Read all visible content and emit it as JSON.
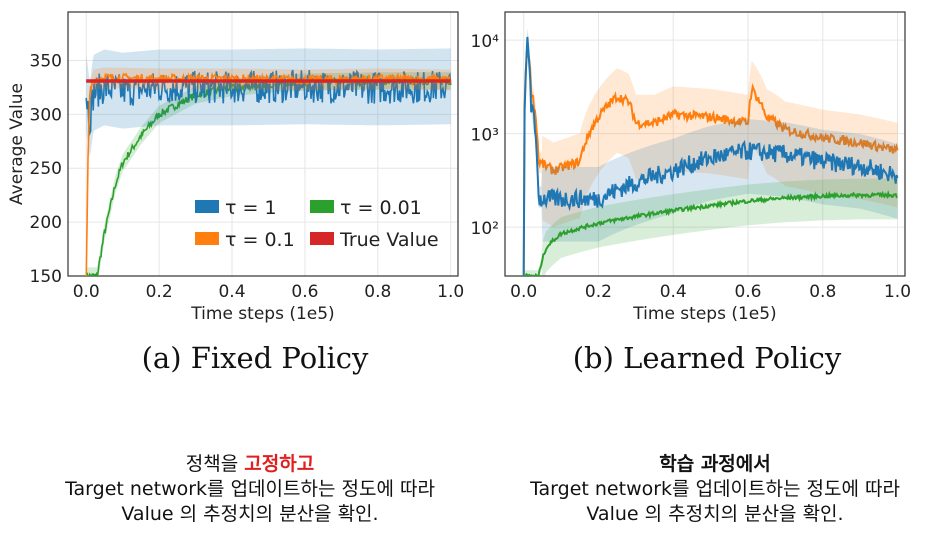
{
  "chart_data": [
    {
      "type": "line",
      "caption": "(a) Fixed Policy",
      "xlabel": "Time steps (1e5)",
      "ylabel": "Average Value",
      "xlim": [
        -0.05,
        1.02
      ],
      "ylim": [
        150,
        395
      ],
      "xticks": [
        "0.0",
        "0.2",
        "0.4",
        "0.6",
        "0.8",
        "1.0"
      ],
      "yticks": [
        "150",
        "200",
        "250",
        "300",
        "350"
      ],
      "grid": true,
      "legend_position": "lower-right",
      "series": [
        {
          "name": "τ = 1",
          "color": "#1f77b4",
          "x": [
            0.0,
            0.01,
            0.02,
            0.05,
            0.1,
            0.2,
            0.4,
            0.6,
            0.8,
            1.0
          ],
          "y": [
            320,
            295,
            320,
            325,
            322,
            325,
            325,
            326,
            325,
            326
          ]
        },
        {
          "name": "τ = 0.1",
          "color": "#ff7f0e",
          "x": [
            0.0,
            0.005,
            0.01,
            0.02,
            0.05,
            0.2,
            0.4,
            0.6,
            0.8,
            1.0
          ],
          "y": [
            150,
            260,
            320,
            332,
            334,
            333,
            333,
            332,
            333,
            332
          ]
        },
        {
          "name": "τ = 0.01",
          "color": "#2ca02c",
          "x": [
            0.0,
            0.03,
            0.05,
            0.08,
            0.1,
            0.15,
            0.2,
            0.3,
            0.4,
            0.5,
            0.6,
            0.8,
            1.0
          ],
          "y": [
            150,
            150,
            190,
            235,
            255,
            280,
            300,
            318,
            325,
            328,
            330,
            331,
            331
          ]
        },
        {
          "name": "True Value",
          "color": "#d62728",
          "x": [
            0.0,
            1.0
          ],
          "y": [
            331,
            331
          ]
        }
      ]
    },
    {
      "type": "line",
      "caption": "(b) Learned Policy",
      "xlabel": "Time steps (1e5)",
      "ylabel": "",
      "xscale": "linear",
      "yscale": "log",
      "xlim": [
        -0.05,
        1.02
      ],
      "ylim": [
        30,
        20000
      ],
      "xticks": [
        "0.0",
        "0.2",
        "0.4",
        "0.6",
        "0.8",
        "1.0"
      ],
      "yticks": [
        "10²",
        "10³",
        "10⁴"
      ],
      "grid": true,
      "series": [
        {
          "name": "τ = 1",
          "color": "#1f77b4",
          "x": [
            0.0,
            0.005,
            0.01,
            0.02,
            0.04,
            0.1,
            0.2,
            0.3,
            0.4,
            0.5,
            0.55,
            0.6,
            0.7,
            0.8,
            0.9,
            1.0
          ],
          "y": [
            30,
            3000,
            10000,
            2000,
            200,
            200,
            200,
            300,
            400,
            550,
            600,
            650,
            600,
            500,
            450,
            350
          ]
        },
        {
          "name": "τ = 0.1",
          "color": "#ff7f0e",
          "x": [
            0.0,
            0.005,
            0.01,
            0.02,
            0.04,
            0.08,
            0.15,
            0.2,
            0.25,
            0.28,
            0.3,
            0.35,
            0.4,
            0.5,
            0.55,
            0.6,
            0.61,
            0.65,
            0.7,
            0.8,
            0.9,
            1.0
          ],
          "y": [
            30,
            4000,
            9000,
            3000,
            500,
            400,
            500,
            1500,
            2500,
            2200,
            1300,
            1300,
            1600,
            1500,
            1400,
            1300,
            3000,
            1500,
            1100,
            900,
            800,
            650
          ]
        },
        {
          "name": "τ = 0.01",
          "color": "#2ca02c",
          "x": [
            0.0,
            0.04,
            0.06,
            0.1,
            0.2,
            0.3,
            0.4,
            0.5,
            0.6,
            0.7,
            0.8,
            0.9,
            1.0
          ],
          "y": [
            30,
            30,
            60,
            85,
            110,
            130,
            150,
            170,
            190,
            205,
            215,
            220,
            220
          ]
        }
      ]
    }
  ],
  "notes": {
    "left": {
      "line1_prefix": "정책을 ",
      "line1_highlight": "고정하고",
      "line2": "Target network를 업데이트하는 정도에 따라",
      "line3": "Value 의 추정치의 분산을 확인."
    },
    "right": {
      "line1": "학습 과정에서",
      "line2": "Target network를 업데이트하는 정도에 따라",
      "line3": "Value 의 추정치의 분산을 확인."
    }
  }
}
